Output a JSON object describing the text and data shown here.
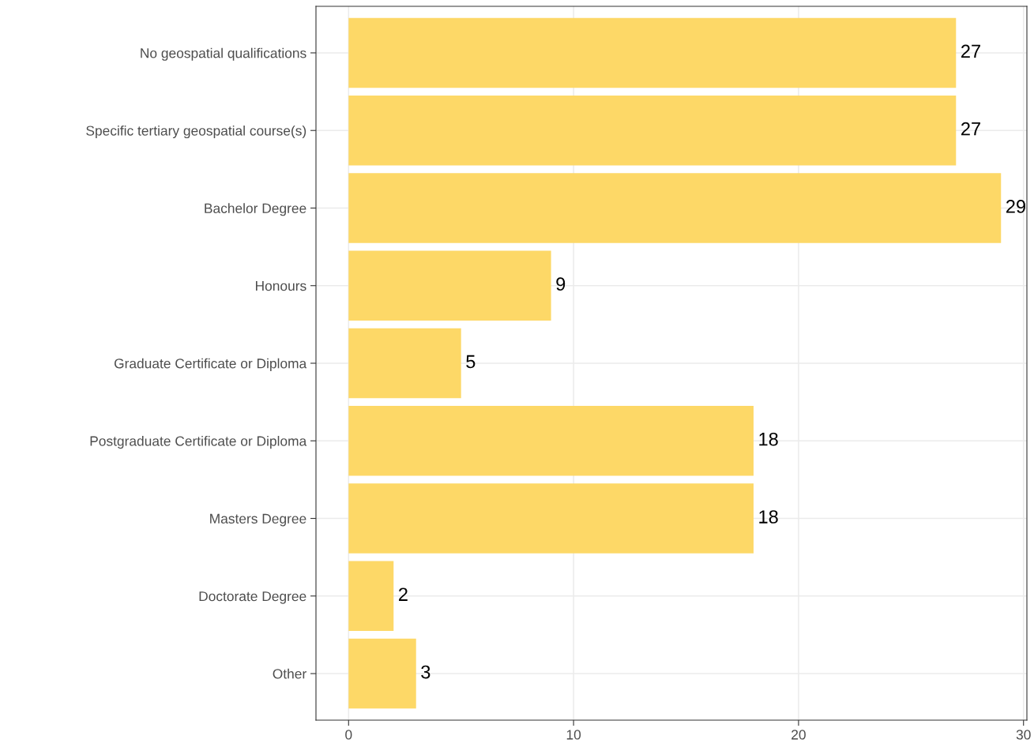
{
  "chart_data": {
    "type": "bar",
    "orientation": "horizontal",
    "categories": [
      "No geospatial qualifications",
      "Specific tertiary geospatial course(s)",
      "Bachelor Degree",
      "Honours",
      "Graduate Certificate or Diploma",
      "Postgraduate Certificate or Diploma",
      "Masters Degree",
      "Doctorate Degree",
      "Other"
    ],
    "values": [
      27,
      27,
      29,
      9,
      5,
      18,
      18,
      2,
      3
    ],
    "color": "#fdd867",
    "xlim": [
      -1.45,
      30.15
    ],
    "xticks": [
      0,
      10,
      20,
      30
    ],
    "grid": true,
    "data_labels": true
  }
}
